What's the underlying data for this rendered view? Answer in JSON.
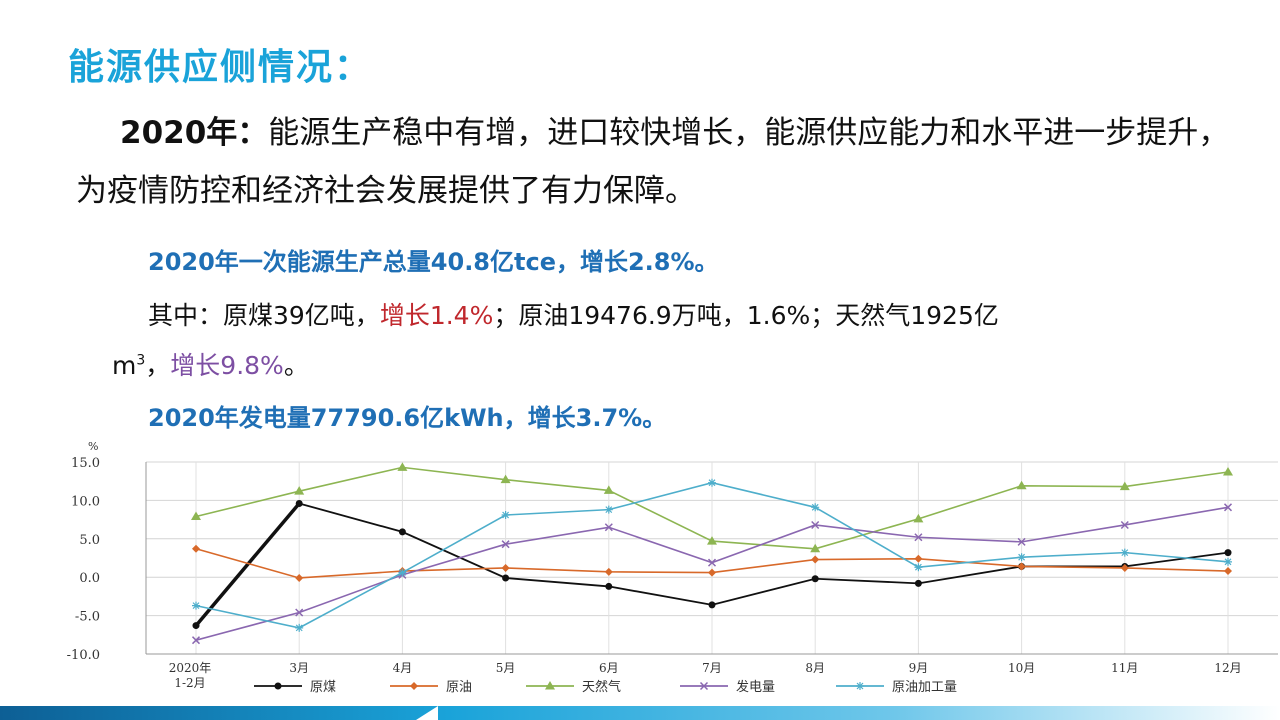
{
  "title": "能源供应侧情况：",
  "para": {
    "lead": "2020年：",
    "text": "能源生产稳中有增，进口较快增长，能源供应能力和水平进一步提升，为疫情防控和经济社会发展提供了有力保障。"
  },
  "line1": "2020年一次能源生产总量40.8亿tce，增长2.8%。",
  "line2": {
    "p1": "其中：原煤39亿吨，",
    "p2": "增长1.4%",
    "p3": "；原油19476.9万吨，1.6%；天然气1925亿"
  },
  "line3": {
    "unit": "m",
    "sup": "3",
    "sep": "，",
    "growth": "增长9.8%",
    "end": "。"
  },
  "line4": "2020年发电量77790.6亿kWh，增长3.7%。",
  "chart_data": {
    "type": "line",
    "unit_label": "%",
    "categories": [
      [
        "2020年",
        "1-2月"
      ],
      [
        "3月"
      ],
      [
        "4月"
      ],
      [
        "5月"
      ],
      [
        "6月"
      ],
      [
        "7月"
      ],
      [
        "8月"
      ],
      [
        "9月"
      ],
      [
        "10月"
      ],
      [
        "11月"
      ],
      [
        "12月"
      ]
    ],
    "yticks": [
      "15.0",
      "10.0",
      "5.0",
      "0.0",
      "-5.0",
      "-10.0"
    ],
    "ylim": [
      -10,
      15
    ],
    "grid": true,
    "legend_placement": "bottom",
    "series": [
      {
        "name": "原煤",
        "color": "#111111",
        "marker": "circle",
        "values": [
          -6.3,
          9.6,
          5.9,
          -0.1,
          -1.2,
          -3.6,
          -0.2,
          -0.8,
          1.4,
          1.4,
          3.2
        ]
      },
      {
        "name": "原油",
        "color": "#d8692a",
        "marker": "diamond",
        "values": [
          3.7,
          -0.1,
          0.8,
          1.2,
          0.7,
          0.6,
          2.3,
          2.4,
          1.4,
          1.2,
          0.8
        ]
      },
      {
        "name": "天然气",
        "color": "#8db552",
        "marker": "triangle",
        "values": [
          7.9,
          11.2,
          14.3,
          12.7,
          11.3,
          4.7,
          3.7,
          7.6,
          11.9,
          11.8,
          13.7
        ]
      },
      {
        "name": "发电量",
        "color": "#8a67b0",
        "marker": "x",
        "values": [
          -8.2,
          -4.6,
          0.3,
          4.3,
          6.5,
          1.9,
          6.8,
          5.2,
          4.6,
          6.8,
          9.1
        ]
      },
      {
        "name": "原油加工量",
        "color": "#4eaecb",
        "marker": "star",
        "values": [
          -3.7,
          -6.6,
          0.6,
          8.1,
          8.8,
          12.3,
          9.1,
          1.3,
          2.6,
          3.2,
          2.0
        ]
      }
    ]
  }
}
